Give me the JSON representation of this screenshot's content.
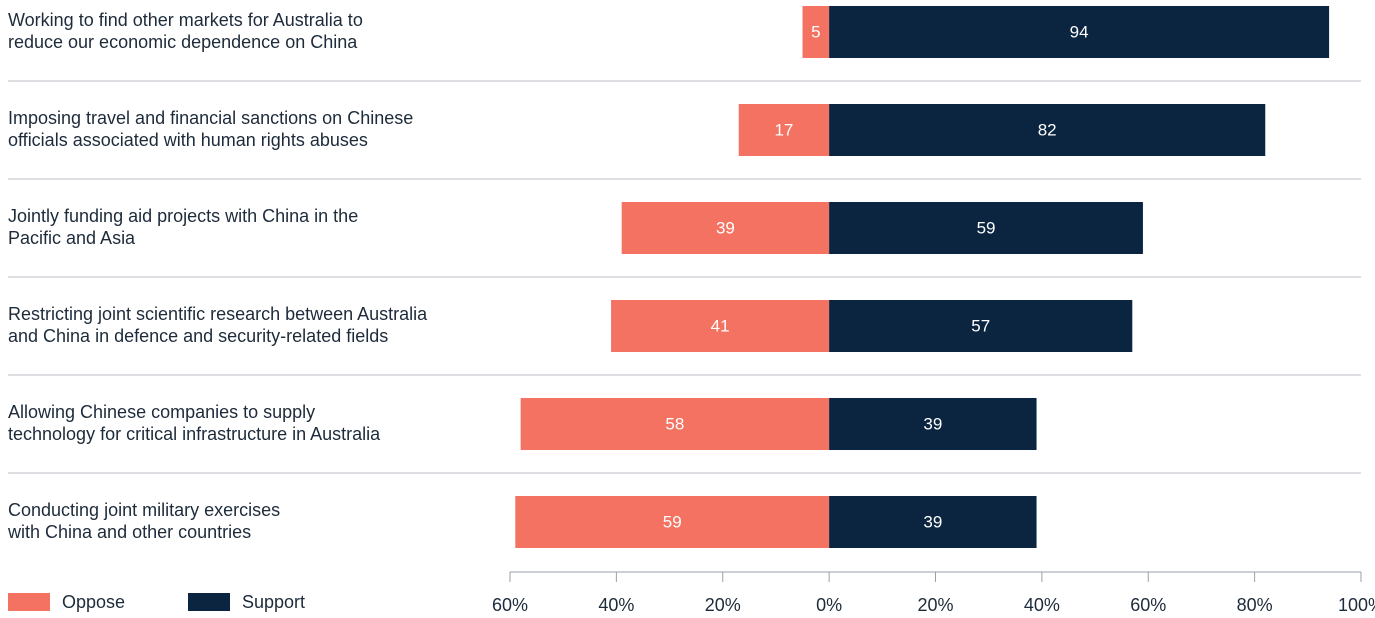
{
  "chart_data": {
    "type": "diverging-bar",
    "categories": [
      [
        "Working to find other markets for Australia to",
        "reduce our economic dependence on China"
      ],
      [
        "Imposing travel and financial sanctions on Chinese",
        "officials associated with human rights abuses"
      ],
      [
        "Jointly funding aid projects with China in the",
        "Pacific and Asia"
      ],
      [
        "Restricting joint scientific research between Australia",
        "and China in defence and security-related fields"
      ],
      [
        "Allowing Chinese companies to supply",
        "technology for critical infrastructure in Australia"
      ],
      [
        "Conducting joint military exercises",
        "with China and other countries"
      ]
    ],
    "series": [
      {
        "name": "Oppose",
        "color": "#f37262",
        "values": [
          -5,
          -17,
          -39,
          -41,
          -58,
          -59
        ],
        "value_labels": [
          "5",
          "17",
          "39",
          "41",
          "58",
          "59"
        ]
      },
      {
        "name": "Support",
        "color": "#0b2440",
        "values": [
          94,
          82,
          59,
          57,
          39,
          39
        ]
      }
    ],
    "xlim": [
      -60,
      100
    ],
    "xticks": [
      {
        "value": -60,
        "label": "60%"
      },
      {
        "value": -40,
        "label": "40%"
      },
      {
        "value": -20,
        "label": "20%"
      },
      {
        "value": 0,
        "label": "0%"
      },
      {
        "value": 20,
        "label": "20%"
      },
      {
        "value": 40,
        "label": "40%"
      },
      {
        "value": 60,
        "label": "60%"
      },
      {
        "value": 80,
        "label": "80%"
      },
      {
        "value": 100,
        "label": "100%"
      }
    ]
  }
}
